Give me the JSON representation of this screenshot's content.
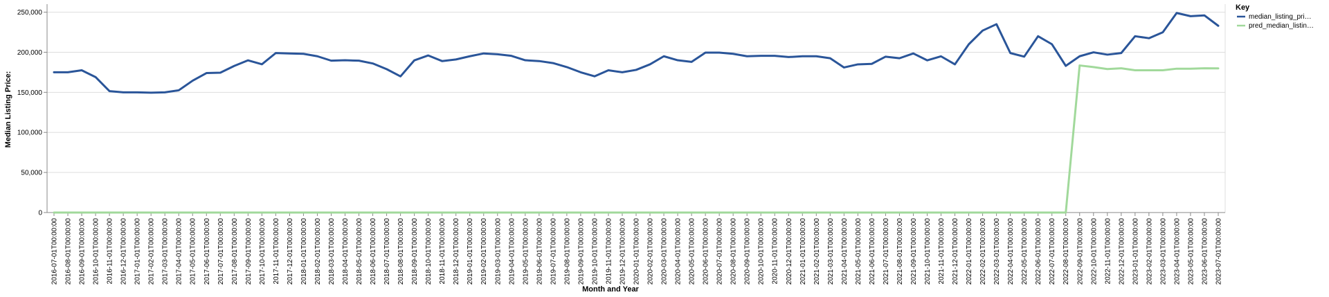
{
  "chart_data": {
    "type": "line",
    "x": [
      "2016-07-01T00:00:00",
      "2016-08-01T00:00:00",
      "2016-09-01T00:00:00",
      "2016-10-01T00:00:00",
      "2016-11-01T00:00:00",
      "2016-12-01T00:00:00",
      "2017-01-01T00:00:00",
      "2017-02-01T00:00:00",
      "2017-03-01T00:00:00",
      "2017-04-01T00:00:00",
      "2017-05-01T00:00:00",
      "2017-06-01T00:00:00",
      "2017-07-01T00:00:00",
      "2017-08-01T00:00:00",
      "2017-09-01T00:00:00",
      "2017-10-01T00:00:00",
      "2017-11-01T00:00:00",
      "2017-12-01T00:00:00",
      "2018-01-01T00:00:00",
      "2018-02-01T00:00:00",
      "2018-03-01T00:00:00",
      "2018-04-01T00:00:00",
      "2018-05-01T00:00:00",
      "2018-06-01T00:00:00",
      "2018-07-01T00:00:00",
      "2018-08-01T00:00:00",
      "2018-09-01T00:00:00",
      "2018-10-01T00:00:00",
      "2018-11-01T00:00:00",
      "2018-12-01T00:00:00",
      "2019-01-01T00:00:00",
      "2019-02-01T00:00:00",
      "2019-03-01T00:00:00",
      "2019-04-01T00:00:00",
      "2019-05-01T00:00:00",
      "2019-06-01T00:00:00",
      "2019-07-01T00:00:00",
      "2019-08-01T00:00:00",
      "2019-09-01T00:00:00",
      "2019-10-01T00:00:00",
      "2019-11-01T00:00:00",
      "2019-12-01T00:00:00",
      "2020-01-01T00:00:00",
      "2020-02-01T00:00:00",
      "2020-03-01T00:00:00",
      "2020-04-01T00:00:00",
      "2020-05-01T00:00:00",
      "2020-06-01T00:00:00",
      "2020-07-01T00:00:00",
      "2020-08-01T00:00:00",
      "2020-09-01T00:00:00",
      "2020-10-01T00:00:00",
      "2020-11-01T00:00:00",
      "2020-12-01T00:00:00",
      "2021-01-01T00:00:00",
      "2021-02-01T00:00:00",
      "2021-03-01T00:00:00",
      "2021-04-01T00:00:00",
      "2021-05-01T00:00:00",
      "2021-06-01T00:00:00",
      "2021-07-01T00:00:00",
      "2021-08-01T00:00:00",
      "2021-09-01T00:00:00",
      "2021-10-01T00:00:00",
      "2021-11-01T00:00:00",
      "2021-12-01T00:00:00",
      "2022-01-01T00:00:00",
      "2022-02-01T00:00:00",
      "2022-03-01T00:00:00",
      "2022-04-01T00:00:00",
      "2022-05-01T00:00:00",
      "2022-06-01T00:00:00",
      "2022-07-01T00:00:00",
      "2022-08-01T00:00:00",
      "2022-09-01T00:00:00",
      "2022-10-01T00:00:00",
      "2022-11-01T00:00:00",
      "2022-12-01T00:00:00",
      "2023-01-01T00:00:00",
      "2023-02-01T00:00:00",
      "2023-03-01T00:00:00",
      "2023-04-01T00:00:00",
      "2023-05-01T00:00:00",
      "2023-06-01T00:00:00",
      "2023-07-01T00:00:00"
    ],
    "series": [
      {
        "name": "median_listing_pri…",
        "color": "#2a5599",
        "values": [
          175000,
          175000,
          177500,
          169000,
          151500,
          150000,
          150000,
          149500,
          150000,
          152500,
          164500,
          174000,
          174500,
          182900,
          189900,
          185000,
          199000,
          198500,
          198000,
          195000,
          189500,
          190000,
          189500,
          186000,
          178900,
          169900,
          189900,
          196000,
          189000,
          191000,
          195000,
          198500,
          197500,
          195500,
          190000,
          189000,
          186500,
          181500,
          175000,
          170000,
          177500,
          175000,
          178000,
          184900,
          195000,
          190000,
          188000,
          199500,
          199500,
          198000,
          195000,
          195500,
          195500,
          194000,
          195000,
          195000,
          192500,
          181000,
          184900,
          185500,
          194500,
          192500,
          198500,
          189900,
          194900,
          184900,
          209900,
          227000,
          235000,
          199000,
          194500,
          220000,
          210000,
          183000,
          195000,
          199900,
          197000,
          199000,
          220000,
          217500,
          224900,
          249000,
          245000,
          246000,
          233000
        ]
      },
      {
        "name": "pred_median_listin…",
        "color": "#a1d99b",
        "values": [
          0,
          0,
          0,
          0,
          0,
          0,
          0,
          0,
          0,
          0,
          0,
          0,
          0,
          0,
          0,
          0,
          0,
          0,
          0,
          0,
          0,
          0,
          0,
          0,
          0,
          0,
          0,
          0,
          0,
          0,
          0,
          0,
          0,
          0,
          0,
          0,
          0,
          0,
          0,
          0,
          0,
          0,
          0,
          0,
          0,
          0,
          0,
          0,
          0,
          0,
          0,
          0,
          0,
          0,
          0,
          0,
          0,
          0,
          0,
          0,
          0,
          0,
          0,
          0,
          0,
          0,
          0,
          0,
          0,
          0,
          0,
          0,
          0,
          0,
          183500,
          181500,
          179000,
          180000,
          177500,
          177500,
          177500,
          179500,
          179500,
          180000,
          179900
        ]
      }
    ],
    "xlabel": "Month and Year",
    "ylabel": "Median Listing Price:",
    "ylim": [
      0,
      260000
    ],
    "yticks": [
      {
        "value": 0,
        "label": "0"
      },
      {
        "value": 50000,
        "label": "50,000"
      },
      {
        "value": 100000,
        "label": "100,000"
      },
      {
        "value": 150000,
        "label": "150,000"
      },
      {
        "value": 200000,
        "label": "200,000"
      },
      {
        "value": 250000,
        "label": "250,000"
      }
    ],
    "grid": true,
    "legend": {
      "title": "Key",
      "placement": "right"
    }
  }
}
